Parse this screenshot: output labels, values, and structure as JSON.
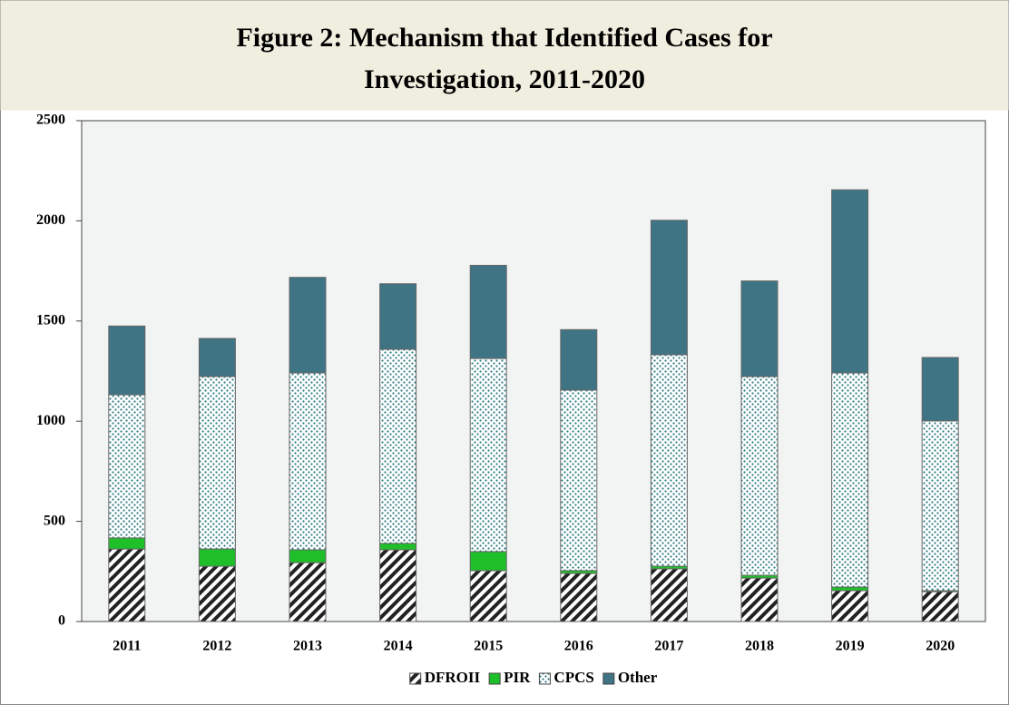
{
  "chart_data": {
    "type": "stacked_bar",
    "title": [
      "Figure 2: Mechanism that Identified Cases for",
      "Investigation, 2011-2020"
    ],
    "categories": [
      "2011",
      "2012",
      "2013",
      "2014",
      "2015",
      "2016",
      "2017",
      "2018",
      "2019",
      "2020"
    ],
    "series": [
      {
        "name": "DFROII",
        "color": "#222222",
        "pattern": "hatch",
        "values": [
          362,
          276,
          294,
          358,
          254,
          240,
          263,
          217,
          154,
          149
        ]
      },
      {
        "name": "PIR",
        "color": "#1fbf2a",
        "pattern": "solid",
        "values": [
          55,
          86,
          64,
          32,
          95,
          14,
          13,
          14,
          18,
          5
        ]
      },
      {
        "name": "CPCS",
        "color": "#2e7b84",
        "pattern": "dots",
        "values": [
          715,
          861,
          883,
          969,
          964,
          901,
          1056,
          992,
          1069,
          847
        ]
      },
      {
        "name": "Other",
        "color": "#3e7484",
        "pattern": "solid",
        "values": [
          343,
          190,
          477,
          327,
          465,
          302,
          671,
          477,
          914,
          317
        ]
      }
    ],
    "ylim": [
      0,
      2500
    ],
    "yticks": [
      0,
      500,
      1000,
      1500,
      2000,
      2500
    ],
    "grid": false,
    "legend": "bottom"
  }
}
